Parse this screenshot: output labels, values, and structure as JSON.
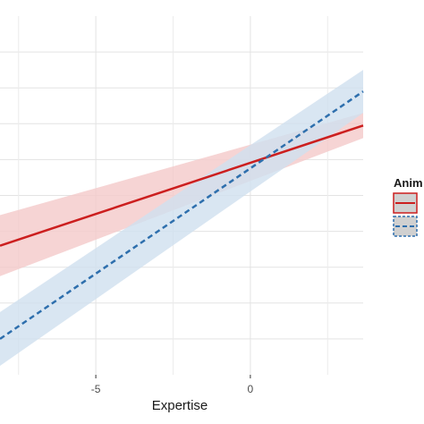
{
  "chart_data": {
    "type": "line",
    "xlabel": "Expertise",
    "ylabel": "",
    "xlim": [
      -8.1,
      3.65
    ],
    "ylim": [
      0,
      10
    ],
    "x_ticks": [
      -5,
      0
    ],
    "x_tick_labels": [
      "-5",
      "0"
    ],
    "x_minor_gridlines": [
      -7.5,
      -2.5,
      2.5
    ],
    "y_gridlines": [
      1,
      2,
      3,
      4,
      5,
      6,
      7,
      8,
      9
    ],
    "grid": true,
    "legend": {
      "title": "Anim",
      "position": "right",
      "entries": [
        {
          "series": 0,
          "label": ""
        },
        {
          "series": 1,
          "label": ""
        }
      ]
    },
    "series": [
      {
        "x": [
          -8.1,
          3.65
        ],
        "y": [
          3.6,
          6.95
        ],
        "ci_lower": [
          2.75,
          6.6
        ],
        "ci_upper": [
          4.45,
          7.3
        ],
        "color": "#cc1f1f",
        "fill": "#f4c9c9",
        "linestyle": "solid"
      },
      {
        "x": [
          -8.1,
          3.65
        ],
        "y": [
          1.0,
          7.9
        ],
        "ci_lower": [
          0.25,
          7.3
        ],
        "ci_upper": [
          1.75,
          8.5
        ],
        "color": "#2e6fad",
        "fill": "#cfe0ef",
        "linestyle": "dashed"
      }
    ]
  }
}
